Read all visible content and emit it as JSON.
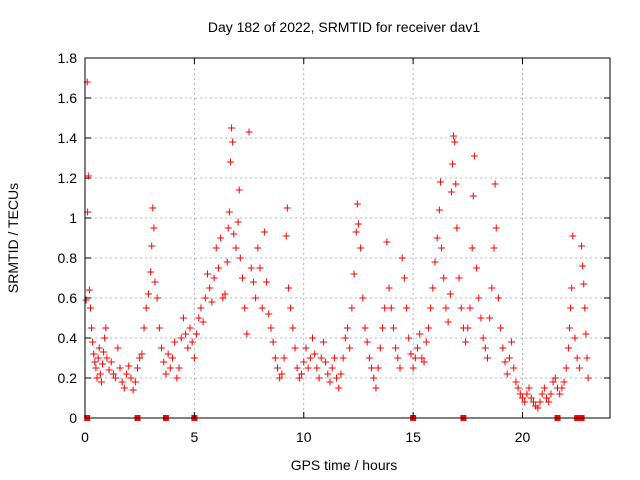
{
  "chart_data": {
    "type": "scatter",
    "title": "Day 182 of 2022, SRMTID for receiver dav1",
    "xlabel": "GPS time / hours",
    "ylabel": "SRMTID / TECUs",
    "xlim": [
      0,
      24
    ],
    "ylim": [
      0,
      1.8
    ],
    "xticks": [
      0,
      5,
      10,
      15,
      20
    ],
    "xtick_labels": [
      "0",
      "5",
      "10",
      "15",
      "20"
    ],
    "yticks": [
      0,
      0.2,
      0.4,
      0.6,
      0.8,
      1.0,
      1.2,
      1.4,
      1.6,
      1.8
    ],
    "ytick_labels": [
      "0",
      "0.2",
      "0.4",
      "0.6",
      "0.8",
      "1",
      "1.2",
      "1.4",
      "1.6",
      "1.8"
    ],
    "grid": true,
    "marker": "+",
    "color": "#ff0000",
    "zero_markers_x": [
      0.1,
      2.4,
      3.7,
      5.0,
      15.0,
      17.3,
      21.6,
      22.5,
      22.7
    ],
    "series": [
      {
        "name": "SRMTID",
        "points": [
          [
            0.05,
            0.59
          ],
          [
            0.1,
            1.68
          ],
          [
            0.15,
            1.21
          ],
          [
            0.12,
            1.03
          ],
          [
            0.2,
            0.64
          ],
          [
            0.25,
            0.55
          ],
          [
            0.3,
            0.45
          ],
          [
            0.35,
            0.38
          ],
          [
            0.4,
            0.32
          ],
          [
            0.45,
            0.28
          ],
          [
            0.5,
            0.25
          ],
          [
            0.55,
            0.2
          ],
          [
            0.6,
            0.3
          ],
          [
            0.65,
            0.35
          ],
          [
            0.7,
            0.22
          ],
          [
            0.75,
            0.18
          ],
          [
            0.8,
            0.27
          ],
          [
            0.85,
            0.33
          ],
          [
            0.9,
            0.4
          ],
          [
            0.95,
            0.45
          ],
          [
            1.0,
            0.3
          ],
          [
            1.1,
            0.24
          ],
          [
            1.2,
            0.28
          ],
          [
            1.3,
            0.22
          ],
          [
            1.4,
            0.2
          ],
          [
            1.5,
            0.35
          ],
          [
            1.6,
            0.25
          ],
          [
            1.7,
            0.18
          ],
          [
            1.8,
            0.15
          ],
          [
            1.9,
            0.22
          ],
          [
            2.0,
            0.26
          ],
          [
            2.1,
            0.2
          ],
          [
            2.2,
            0.14
          ],
          [
            2.3,
            0.18
          ],
          [
            2.4,
            0.25
          ],
          [
            2.5,
            0.3
          ],
          [
            2.6,
            0.32
          ],
          [
            2.7,
            0.45
          ],
          [
            2.8,
            0.55
          ],
          [
            2.9,
            0.62
          ],
          [
            3.0,
            0.73
          ],
          [
            3.05,
            0.86
          ],
          [
            3.1,
            1.05
          ],
          [
            3.15,
            0.95
          ],
          [
            3.2,
            0.68
          ],
          [
            3.3,
            0.6
          ],
          [
            3.4,
            0.45
          ],
          [
            3.5,
            0.35
          ],
          [
            3.6,
            0.28
          ],
          [
            3.7,
            0.22
          ],
          [
            3.8,
            0.32
          ],
          [
            3.9,
            0.25
          ],
          [
            4.0,
            0.3
          ],
          [
            4.1,
            0.38
          ],
          [
            4.2,
            0.2
          ],
          [
            4.3,
            0.25
          ],
          [
            4.4,
            0.4
          ],
          [
            4.5,
            0.5
          ],
          [
            4.6,
            0.42
          ],
          [
            4.7,
            0.35
          ],
          [
            4.8,
            0.45
          ],
          [
            4.9,
            0.38
          ],
          [
            5.0,
            0.3
          ],
          [
            5.1,
            0.42
          ],
          [
            5.2,
            0.5
          ],
          [
            5.3,
            0.55
          ],
          [
            5.4,
            0.48
          ],
          [
            5.5,
            0.6
          ],
          [
            5.6,
            0.72
          ],
          [
            5.7,
            0.65
          ],
          [
            5.8,
            0.58
          ],
          [
            5.9,
            0.7
          ],
          [
            6.0,
            0.85
          ],
          [
            6.1,
            0.75
          ],
          [
            6.2,
            0.9
          ],
          [
            6.3,
            0.6
          ],
          [
            6.4,
            0.62
          ],
          [
            6.5,
            0.78
          ],
          [
            6.55,
            0.95
          ],
          [
            6.6,
            1.03
          ],
          [
            6.65,
            1.28
          ],
          [
            6.7,
            1.45
          ],
          [
            6.75,
            1.38
          ],
          [
            6.8,
            0.92
          ],
          [
            6.9,
            0.85
          ],
          [
            7.0,
            0.98
          ],
          [
            7.05,
            1.14
          ],
          [
            7.1,
            0.8
          ],
          [
            7.2,
            0.7
          ],
          [
            7.3,
            0.55
          ],
          [
            7.4,
            0.42
          ],
          [
            7.5,
            1.43
          ],
          [
            7.6,
            0.75
          ],
          [
            7.7,
            0.68
          ],
          [
            7.8,
            0.6
          ],
          [
            7.9,
            0.85
          ],
          [
            8.0,
            0.75
          ],
          [
            8.1,
            0.55
          ],
          [
            8.2,
            0.93
          ],
          [
            8.3,
            0.68
          ],
          [
            8.4,
            0.52
          ],
          [
            8.5,
            0.45
          ],
          [
            8.6,
            0.38
          ],
          [
            8.7,
            0.3
          ],
          [
            8.8,
            0.25
          ],
          [
            8.9,
            0.2
          ],
          [
            9.0,
            0.22
          ],
          [
            9.1,
            0.3
          ],
          [
            9.2,
            0.91
          ],
          [
            9.25,
            1.05
          ],
          [
            9.3,
            0.65
          ],
          [
            9.4,
            0.55
          ],
          [
            9.5,
            0.45
          ],
          [
            9.6,
            0.35
          ],
          [
            9.7,
            0.25
          ],
          [
            9.8,
            0.2
          ],
          [
            9.9,
            0.22
          ],
          [
            10.0,
            0.28
          ],
          [
            10.1,
            0.35
          ],
          [
            10.2,
            0.25
          ],
          [
            10.3,
            0.3
          ],
          [
            10.4,
            0.4
          ],
          [
            10.5,
            0.32
          ],
          [
            10.6,
            0.25
          ],
          [
            10.7,
            0.2
          ],
          [
            10.8,
            0.3
          ],
          [
            10.9,
            0.38
          ],
          [
            11.0,
            0.28
          ],
          [
            11.1,
            0.22
          ],
          [
            11.2,
            0.18
          ],
          [
            11.3,
            0.25
          ],
          [
            11.4,
            0.3
          ],
          [
            11.5,
            0.2
          ],
          [
            11.6,
            0.15
          ],
          [
            11.7,
            0.22
          ],
          [
            11.8,
            0.3
          ],
          [
            11.9,
            0.4
          ],
          [
            12.0,
            0.45
          ],
          [
            12.1,
            0.35
          ],
          [
            12.2,
            0.55
          ],
          [
            12.3,
            0.72
          ],
          [
            12.4,
            0.93
          ],
          [
            12.45,
            1.07
          ],
          [
            12.5,
            0.97
          ],
          [
            12.6,
            0.85
          ],
          [
            12.7,
            0.6
          ],
          [
            12.8,
            0.45
          ],
          [
            12.9,
            0.38
          ],
          [
            13.0,
            0.3
          ],
          [
            13.1,
            0.25
          ],
          [
            13.2,
            0.2
          ],
          [
            13.3,
            0.15
          ],
          [
            13.4,
            0.25
          ],
          [
            13.5,
            0.35
          ],
          [
            13.6,
            0.45
          ],
          [
            13.7,
            0.55
          ],
          [
            13.8,
            0.88
          ],
          [
            13.9,
            0.65
          ],
          [
            14.0,
            0.55
          ],
          [
            14.1,
            0.45
          ],
          [
            14.2,
            0.35
          ],
          [
            14.3,
            0.3
          ],
          [
            14.4,
            0.25
          ],
          [
            14.5,
            0.8
          ],
          [
            14.6,
            0.7
          ],
          [
            14.7,
            0.55
          ],
          [
            14.8,
            0.4
          ],
          [
            14.9,
            0.32
          ],
          [
            15.0,
            0.25
          ],
          [
            15.1,
            0.3
          ],
          [
            15.2,
            0.35
          ],
          [
            15.3,
            0.42
          ],
          [
            15.4,
            0.3
          ],
          [
            15.5,
            0.28
          ],
          [
            15.6,
            0.38
          ],
          [
            15.7,
            0.45
          ],
          [
            15.8,
            0.55
          ],
          [
            15.9,
            0.65
          ],
          [
            16.0,
            0.78
          ],
          [
            16.1,
            0.9
          ],
          [
            16.2,
            1.04
          ],
          [
            16.25,
            1.18
          ],
          [
            16.3,
            0.85
          ],
          [
            16.4,
            0.7
          ],
          [
            16.5,
            0.55
          ],
          [
            16.6,
            0.48
          ],
          [
            16.7,
            0.62
          ],
          [
            16.75,
            1.13
          ],
          [
            16.8,
            1.27
          ],
          [
            16.85,
            1.41
          ],
          [
            16.9,
            1.38
          ],
          [
            16.95,
            1.17
          ],
          [
            17.0,
            0.95
          ],
          [
            17.1,
            0.7
          ],
          [
            17.2,
            0.55
          ],
          [
            17.3,
            0.45
          ],
          [
            17.4,
            0.38
          ],
          [
            17.5,
            0.45
          ],
          [
            17.6,
            0.55
          ],
          [
            17.7,
            0.85
          ],
          [
            17.75,
            1.11
          ],
          [
            17.8,
            1.31
          ],
          [
            17.9,
            0.75
          ],
          [
            18.0,
            0.6
          ],
          [
            18.1,
            0.5
          ],
          [
            18.2,
            0.4
          ],
          [
            18.3,
            0.35
          ],
          [
            18.4,
            0.3
          ],
          [
            18.5,
            0.5
          ],
          [
            18.6,
            0.65
          ],
          [
            18.7,
            0.85
          ],
          [
            18.75,
            1.17
          ],
          [
            18.8,
            0.95
          ],
          [
            18.9,
            0.6
          ],
          [
            19.0,
            0.45
          ],
          [
            19.1,
            0.35
          ],
          [
            19.2,
            0.28
          ],
          [
            19.3,
            0.22
          ],
          [
            19.4,
            0.3
          ],
          [
            19.5,
            0.38
          ],
          [
            19.6,
            0.25
          ],
          [
            19.7,
            0.18
          ],
          [
            19.8,
            0.15
          ],
          [
            19.9,
            0.12
          ],
          [
            20.0,
            0.1
          ],
          [
            20.1,
            0.08
          ],
          [
            20.2,
            0.12
          ],
          [
            20.3,
            0.15
          ],
          [
            20.4,
            0.1
          ],
          [
            20.5,
            0.08
          ],
          [
            20.6,
            0.06
          ],
          [
            20.7,
            0.05
          ],
          [
            20.8,
            0.08
          ],
          [
            20.9,
            0.12
          ],
          [
            21.0,
            0.15
          ],
          [
            21.1,
            0.1
          ],
          [
            21.2,
            0.08
          ],
          [
            21.3,
            0.12
          ],
          [
            21.4,
            0.18
          ],
          [
            21.5,
            0.2
          ],
          [
            21.6,
            0.15
          ],
          [
            21.7,
            0.12
          ],
          [
            21.8,
            0.15
          ],
          [
            21.9,
            0.18
          ],
          [
            22.0,
            0.25
          ],
          [
            22.1,
            0.35
          ],
          [
            22.15,
            0.45
          ],
          [
            22.2,
            0.55
          ],
          [
            22.25,
            0.65
          ],
          [
            22.3,
            0.91
          ],
          [
            22.4,
            0.4
          ],
          [
            22.5,
            0.3
          ],
          [
            22.6,
            0.25
          ],
          [
            22.7,
            0.86
          ],
          [
            22.75,
            0.76
          ],
          [
            22.8,
            0.67
          ],
          [
            22.85,
            0.55
          ],
          [
            22.9,
            0.42
          ],
          [
            22.95,
            0.3
          ],
          [
            23.0,
            0.2
          ]
        ]
      }
    ]
  }
}
